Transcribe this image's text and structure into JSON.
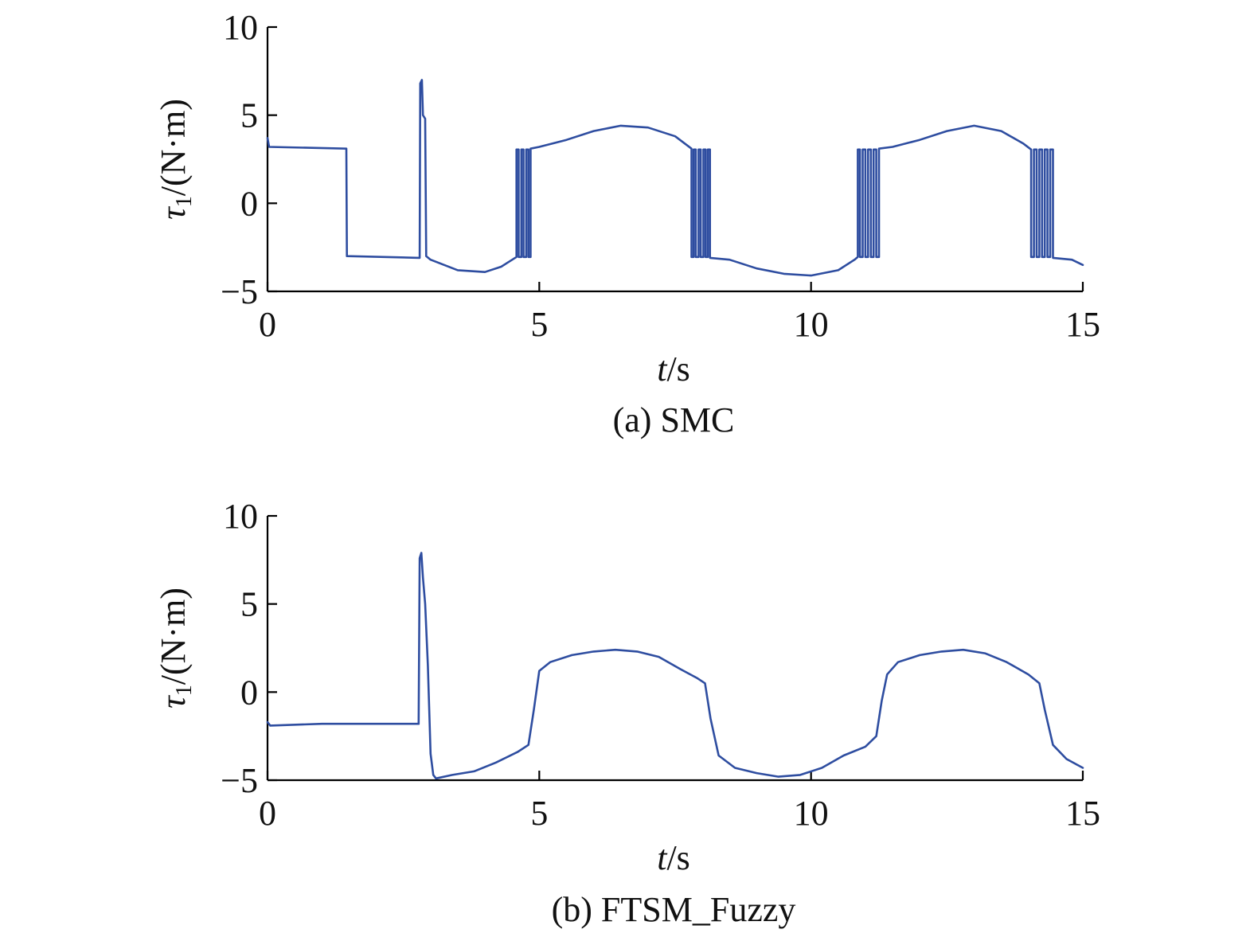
{
  "colors": {
    "series": "#2e4da0",
    "axis": "#000000",
    "text": "#111111"
  },
  "chart_data": [
    {
      "type": "line",
      "caption": "(a) SMC",
      "xlabel_italic": "t",
      "xlabel_unit": "/s",
      "ylabel_symbol": "τ",
      "ylabel_sub": "1",
      "ylabel_unit": "/(N·m)",
      "xlim": [
        0,
        15
      ],
      "ylim": [
        -5,
        10
      ],
      "xticks": [
        0,
        5,
        10,
        15
      ],
      "yticks": [
        -5,
        0,
        5,
        10
      ],
      "xtick_labels": [
        "0",
        "5",
        "10",
        "15"
      ],
      "ytick_labels": [
        "−5",
        "0",
        "5",
        "10"
      ],
      "grid": false,
      "series": [
        {
          "points": [
            [
              0,
              3.7
            ],
            [
              0.03,
              3.2
            ],
            [
              1.45,
              3.1
            ],
            [
              1.46,
              -3.0
            ],
            [
              2.8,
              -3.1
            ],
            [
              2.81,
              6.8
            ],
            [
              2.84,
              7.0
            ],
            [
              2.86,
              5.0
            ],
            [
              2.9,
              4.8
            ],
            [
              2.92,
              -3.0
            ],
            [
              3.0,
              -3.2
            ],
            [
              3.5,
              -3.8
            ],
            [
              4.0,
              -3.9
            ],
            [
              4.3,
              -3.6
            ],
            [
              4.58,
              -3.05
            ],
            [
              4.58,
              3.05
            ],
            [
              4.62,
              3.05
            ],
            [
              4.62,
              -3.05
            ],
            [
              4.67,
              -3.05
            ],
            [
              4.67,
              3.05
            ],
            [
              4.71,
              3.05
            ],
            [
              4.71,
              -3.05
            ],
            [
              4.76,
              -3.05
            ],
            [
              4.76,
              3.05
            ],
            [
              4.8,
              3.05
            ],
            [
              4.8,
              -3.05
            ],
            [
              4.84,
              -3.05
            ],
            [
              4.84,
              3.1
            ],
            [
              5.0,
              3.2
            ],
            [
              5.5,
              3.6
            ],
            [
              6.0,
              4.1
            ],
            [
              6.5,
              4.4
            ],
            [
              7.0,
              4.3
            ],
            [
              7.5,
              3.8
            ],
            [
              7.8,
              3.1
            ],
            [
              7.8,
              -3.05
            ],
            [
              7.84,
              -3.05
            ],
            [
              7.84,
              3.05
            ],
            [
              7.88,
              3.05
            ],
            [
              7.88,
              -3.05
            ],
            [
              7.93,
              -3.05
            ],
            [
              7.93,
              3.05
            ],
            [
              7.97,
              3.05
            ],
            [
              7.97,
              -3.05
            ],
            [
              8.02,
              -3.05
            ],
            [
              8.02,
              3.05
            ],
            [
              8.06,
              3.05
            ],
            [
              8.06,
              -3.05
            ],
            [
              8.1,
              -3.05
            ],
            [
              8.1,
              3.05
            ],
            [
              8.14,
              3.05
            ],
            [
              8.14,
              -3.1
            ],
            [
              8.5,
              -3.2
            ],
            [
              9.0,
              -3.7
            ],
            [
              9.5,
              -4.0
            ],
            [
              10.0,
              -4.1
            ],
            [
              10.5,
              -3.8
            ],
            [
              10.8,
              -3.2
            ],
            [
              10.86,
              -3.05
            ],
            [
              10.86,
              3.05
            ],
            [
              10.9,
              3.05
            ],
            [
              10.9,
              -3.05
            ],
            [
              10.95,
              -3.05
            ],
            [
              10.95,
              3.05
            ],
            [
              11.0,
              3.05
            ],
            [
              11.0,
              -3.05
            ],
            [
              11.05,
              -3.05
            ],
            [
              11.05,
              3.05
            ],
            [
              11.1,
              3.05
            ],
            [
              11.1,
              -3.05
            ],
            [
              11.15,
              -3.05
            ],
            [
              11.15,
              3.05
            ],
            [
              11.2,
              3.05
            ],
            [
              11.2,
              -3.05
            ],
            [
              11.25,
              -3.05
            ],
            [
              11.25,
              3.1
            ],
            [
              11.5,
              3.2
            ],
            [
              12.0,
              3.6
            ],
            [
              12.5,
              4.1
            ],
            [
              13.0,
              4.4
            ],
            [
              13.5,
              4.1
            ],
            [
              13.9,
              3.4
            ],
            [
              14.05,
              3.05
            ],
            [
              14.05,
              -3.05
            ],
            [
              14.1,
              -3.05
            ],
            [
              14.1,
              3.05
            ],
            [
              14.15,
              3.05
            ],
            [
              14.15,
              -3.05
            ],
            [
              14.2,
              -3.05
            ],
            [
              14.2,
              3.05
            ],
            [
              14.25,
              3.05
            ],
            [
              14.25,
              -3.05
            ],
            [
              14.3,
              -3.05
            ],
            [
              14.3,
              3.05
            ],
            [
              14.35,
              3.05
            ],
            [
              14.35,
              -3.05
            ],
            [
              14.4,
              -3.05
            ],
            [
              14.4,
              3.05
            ],
            [
              14.45,
              3.05
            ],
            [
              14.45,
              -3.1
            ],
            [
              14.8,
              -3.2
            ],
            [
              15.0,
              -3.5
            ]
          ]
        }
      ]
    },
    {
      "type": "line",
      "caption": "(b) FTSM_Fuzzy",
      "xlabel_italic": "t",
      "xlabel_unit": "/s",
      "ylabel_symbol": "τ",
      "ylabel_sub": "1",
      "ylabel_unit": "/(N·m)",
      "xlim": [
        0,
        15
      ],
      "ylim": [
        -5,
        10
      ],
      "xticks": [
        0,
        5,
        10,
        15
      ],
      "yticks": [
        -5,
        0,
        5,
        10
      ],
      "xtick_labels": [
        "0",
        "5",
        "10",
        "15"
      ],
      "ytick_labels": [
        "−5",
        "0",
        "5",
        "10"
      ],
      "grid": false,
      "series": [
        {
          "points": [
            [
              0,
              -1.7
            ],
            [
              0.05,
              -1.9
            ],
            [
              1.0,
              -1.8
            ],
            [
              2.0,
              -1.8
            ],
            [
              2.78,
              -1.8
            ],
            [
              2.8,
              7.6
            ],
            [
              2.83,
              7.9
            ],
            [
              2.86,
              6.5
            ],
            [
              2.9,
              5.0
            ],
            [
              2.95,
              1.5
            ],
            [
              3.0,
              -3.5
            ],
            [
              3.05,
              -4.7
            ],
            [
              3.1,
              -4.9
            ],
            [
              3.4,
              -4.7
            ],
            [
              3.8,
              -4.5
            ],
            [
              4.2,
              -4.0
            ],
            [
              4.6,
              -3.4
            ],
            [
              4.8,
              -3.0
            ],
            [
              4.9,
              -1.0
            ],
            [
              5.0,
              1.2
            ],
            [
              5.2,
              1.7
            ],
            [
              5.6,
              2.1
            ],
            [
              6.0,
              2.3
            ],
            [
              6.4,
              2.4
            ],
            [
              6.8,
              2.3
            ],
            [
              7.2,
              2.0
            ],
            [
              7.6,
              1.3
            ],
            [
              7.9,
              0.8
            ],
            [
              8.05,
              0.5
            ],
            [
              8.15,
              -1.5
            ],
            [
              8.3,
              -3.6
            ],
            [
              8.6,
              -4.3
            ],
            [
              9.0,
              -4.6
            ],
            [
              9.4,
              -4.8
            ],
            [
              9.8,
              -4.7
            ],
            [
              10.2,
              -4.3
            ],
            [
              10.6,
              -3.6
            ],
            [
              11.0,
              -3.1
            ],
            [
              11.2,
              -2.5
            ],
            [
              11.3,
              -0.5
            ],
            [
              11.4,
              1.0
            ],
            [
              11.6,
              1.7
            ],
            [
              12.0,
              2.1
            ],
            [
              12.4,
              2.3
            ],
            [
              12.8,
              2.4
            ],
            [
              13.2,
              2.2
            ],
            [
              13.6,
              1.7
            ],
            [
              14.0,
              1.0
            ],
            [
              14.2,
              0.5
            ],
            [
              14.3,
              -1.0
            ],
            [
              14.45,
              -3.0
            ],
            [
              14.7,
              -3.8
            ],
            [
              15.0,
              -4.3
            ]
          ]
        }
      ]
    }
  ]
}
